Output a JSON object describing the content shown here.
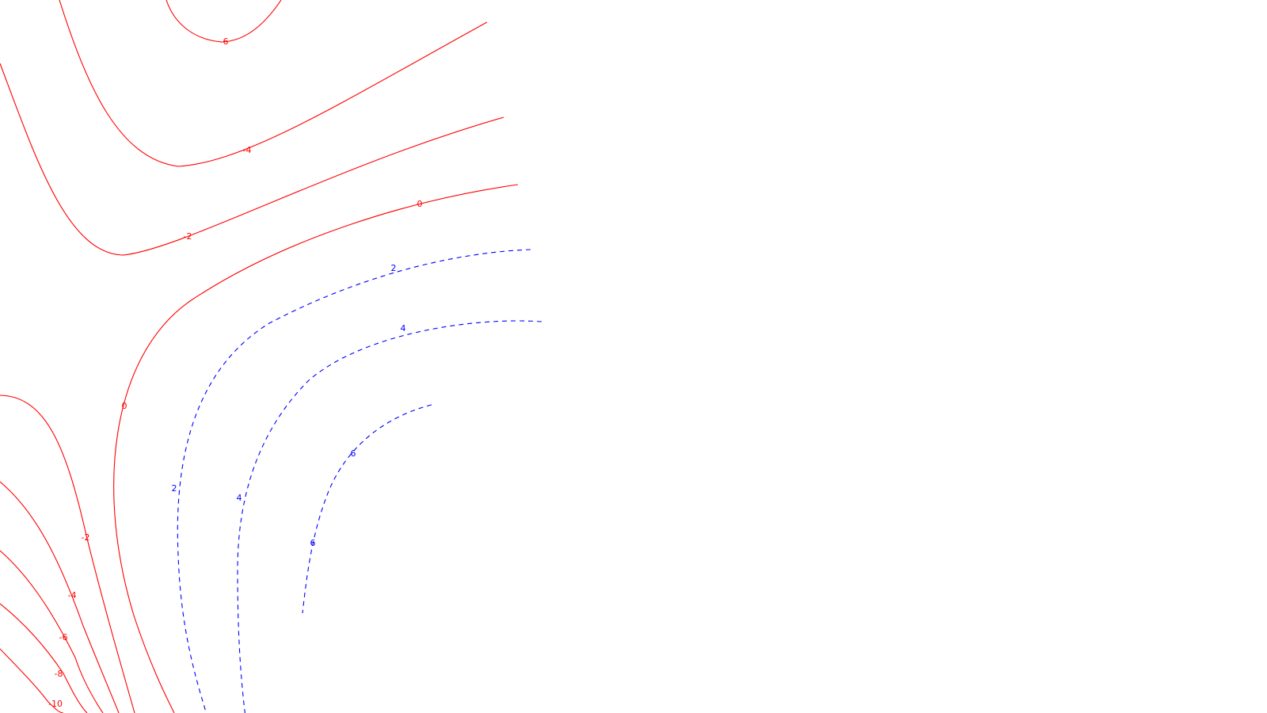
{
  "chart_data": {
    "type": "contour",
    "title": "",
    "xlabel": "",
    "ylabel": "",
    "negative_color": "#ff0000",
    "positive_color": "#0000ff",
    "negative_style": "solid",
    "positive_style": "dashed",
    "levels": [
      {
        "value": -10,
        "label": "-10",
        "sign": "negative"
      },
      {
        "value": -8,
        "label": "-8",
        "sign": "negative"
      },
      {
        "value": -6,
        "label": "-6",
        "sign": "negative"
      },
      {
        "value": -4,
        "label": "-4",
        "sign": "negative"
      },
      {
        "value": -2,
        "label": "-2",
        "sign": "negative"
      },
      {
        "value": 0,
        "label": "0",
        "sign": "negative"
      },
      {
        "value": 2,
        "label": "2",
        "sign": "positive"
      },
      {
        "value": 4,
        "label": "4",
        "sign": "positive"
      },
      {
        "value": 6,
        "label": "6",
        "sign": "positive"
      }
    ]
  }
}
